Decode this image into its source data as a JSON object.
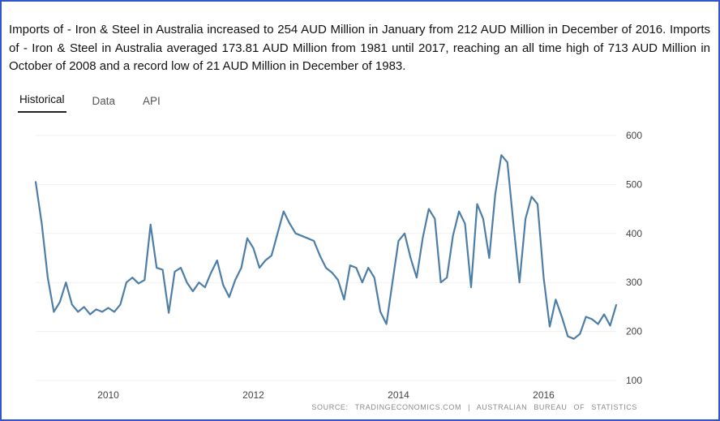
{
  "description": "Imports of - Iron & Steel in Australia increased to 254 AUD Million in January from 212 AUD Million in December of 2016. Imports of - Iron & Steel in Australia averaged 173.81 AUD Million from 1981 until 2017, reaching an all time high of 713 AUD Million in October of 2008 and a record low of 21 AUD Million in December of 1983.",
  "tabs": [
    {
      "label": "Historical",
      "active": true
    },
    {
      "label": "Data",
      "active": false
    },
    {
      "label": "API",
      "active": false
    }
  ],
  "source": "SOURCE: TRADINGECONOMICS.COM | AUSTRALIAN BUREAU OF STATISTICS",
  "colors": {
    "page_border": "#3355cc",
    "line": "#4d7ea8",
    "active_tab_underline": "#222222",
    "axis_label": "#444444"
  },
  "chart_data": {
    "type": "line",
    "title": "Australia Imports of Iron & Steel",
    "unit": "AUD Million",
    "x_start": "2009-01",
    "x_interval": "monthly",
    "values": [
      505,
      420,
      310,
      240,
      260,
      300,
      255,
      240,
      250,
      235,
      245,
      240,
      248,
      240,
      255,
      300,
      310,
      298,
      305,
      418,
      330,
      326,
      238,
      322,
      330,
      300,
      282,
      300,
      290,
      320,
      345,
      295,
      270,
      305,
      330,
      390,
      370,
      330,
      345,
      355,
      400,
      445,
      420,
      400,
      395,
      390,
      385,
      355,
      330,
      320,
      305,
      265,
      335,
      330,
      300,
      330,
      310,
      240,
      215,
      300,
      385,
      400,
      350,
      310,
      390,
      450,
      430,
      300,
      310,
      395,
      445,
      420,
      290,
      460,
      430,
      350,
      480,
      560,
      545,
      420,
      300,
      430,
      475,
      460,
      310,
      210,
      265,
      230,
      190,
      185,
      195,
      230,
      225,
      215,
      235,
      212,
      254
    ],
    "x_ticks": [
      {
        "label": "2010",
        "index": 12
      },
      {
        "label": "2012",
        "index": 36
      },
      {
        "label": "2014",
        "index": 60
      },
      {
        "label": "2016",
        "index": 84
      }
    ],
    "y_ticks": [
      100,
      200,
      300,
      400,
      500,
      600
    ],
    "ylim": [
      100,
      600
    ],
    "grid": "faint-horizontal",
    "legend": "none",
    "line_color": "#4d7ea8",
    "y_axis_side": "right"
  }
}
